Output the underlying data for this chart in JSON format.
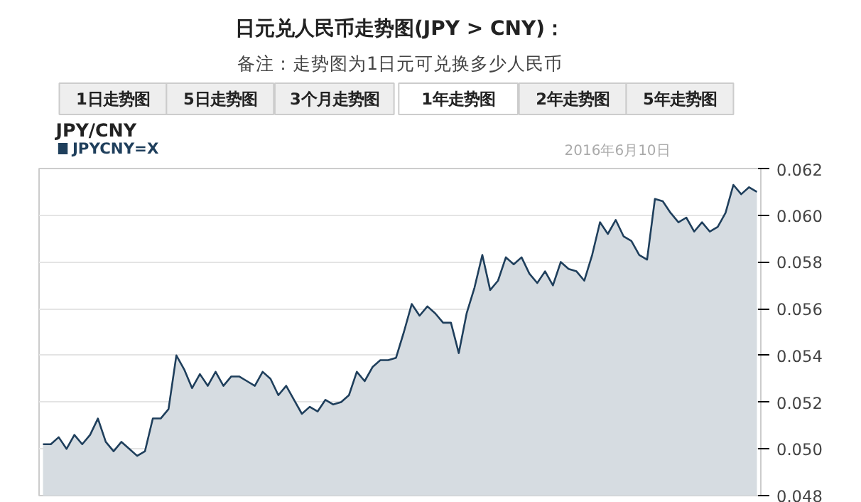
{
  "chart_data": {
    "type": "area",
    "title": "日元兑人民币走势图(JPY > CNY)：",
    "subtitle": "备注：走势图为1日元可兑换多少人民币",
    "annotations": [
      "1日走势图",
      "5日走势图",
      "3个月走势图",
      "1年走势图",
      "2年走势图",
      "5年走势图",
      "JPY/CNY",
      "2016年6月10日"
    ],
    "categories": [
      null,
      null,
      null,
      null,
      null,
      null,
      null,
      null,
      null,
      null,
      null,
      null,
      null,
      null,
      null,
      null,
      null,
      null,
      null,
      null,
      null,
      null,
      null,
      null,
      null,
      null,
      null,
      null,
      null,
      null,
      null,
      null,
      null,
      null,
      null,
      null,
      null,
      null,
      null,
      null,
      null,
      null,
      null,
      null,
      null,
      null,
      null,
      null,
      null,
      null,
      null,
      null,
      null,
      null,
      null,
      null,
      null,
      null,
      null,
      null,
      null,
      null,
      null,
      null,
      null,
      null,
      null,
      null,
      null,
      null,
      null,
      null,
      null,
      null,
      null,
      null,
      null,
      null,
      null,
      null,
      null,
      null,
      null,
      null,
      null,
      null,
      null,
      null,
      null,
      null,
      null,
      null
    ],
    "series": [
      {
        "name": "JPYCNY=X",
        "color": "#1f3f5c",
        "values": [
          0.0502,
          0.0502,
          0.0505,
          0.05,
          0.0506,
          0.0502,
          0.0506,
          0.0513,
          0.0503,
          0.0499,
          0.0503,
          0.05,
          0.0497,
          0.0499,
          0.0513,
          0.0513,
          0.0517,
          0.054,
          0.0534,
          0.0526,
          0.0532,
          0.0527,
          0.0533,
          0.0527,
          0.0531,
          0.0531,
          0.0529,
          0.0527,
          0.0533,
          0.053,
          0.0523,
          0.0527,
          0.0521,
          0.0515,
          0.0518,
          0.0516,
          0.0521,
          0.0519,
          0.052,
          0.0523,
          0.0533,
          0.0529,
          0.0535,
          0.0538,
          0.0538,
          0.0539,
          0.055,
          0.0562,
          0.0557,
          0.0561,
          0.0558,
          0.0554,
          0.0554,
          0.0541,
          0.0558,
          0.0569,
          0.0583,
          0.0568,
          0.0572,
          0.0582,
          0.0579,
          0.0582,
          0.0575,
          0.0571,
          0.0576,
          0.057,
          0.058,
          0.0577,
          0.0576,
          0.0572,
          0.0583,
          0.0597,
          0.0592,
          0.0598,
          0.0591,
          0.0589,
          0.0583,
          0.0581,
          0.0607,
          0.0606,
          0.0601,
          0.0597,
          0.0599,
          0.0593,
          0.0597,
          0.0593,
          0.0595,
          0.0601,
          0.0613,
          0.0609,
          0.0612,
          0.061
        ]
      }
    ],
    "ylim": [
      0.048,
      0.062
    ],
    "yticks": [
      {
        "value": 0.048,
        "label": "0.048"
      },
      {
        "value": 0.05,
        "label": "0.050"
      },
      {
        "value": 0.052,
        "label": "0.052"
      },
      {
        "value": 0.054,
        "label": "0.054"
      },
      {
        "value": 0.056,
        "label": "0.056"
      },
      {
        "value": 0.058,
        "label": "0.058"
      },
      {
        "value": 0.06,
        "label": "0.060"
      },
      {
        "value": 0.062,
        "label": "0.062"
      }
    ],
    "grid": "y",
    "legend": "top left",
    "tick_labels": "y"
  }
}
